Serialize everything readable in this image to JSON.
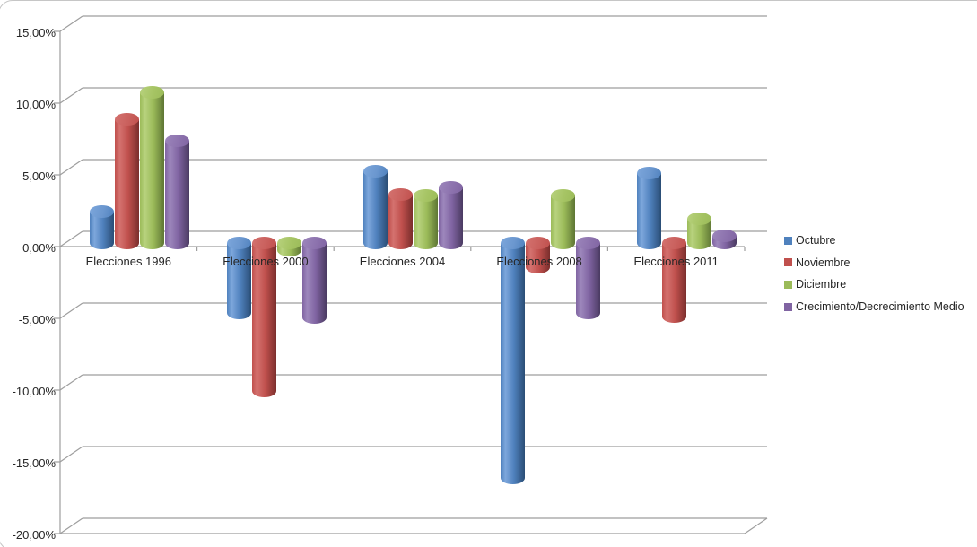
{
  "chart_data": {
    "type": "bar",
    "style": "3d-clustered-cylinder",
    "title": "",
    "categories": [
      "Elecciones 1996",
      "Elecciones 2000",
      "Elecciones 2004",
      "Elecciones 2008",
      "Elecciones 2011"
    ],
    "series": [
      {
        "name": "Octubre",
        "color": "#4F81BD",
        "values": [
          2.2,
          -4.9,
          5.0,
          -16.4,
          4.9
        ]
      },
      {
        "name": "Noviembre",
        "color": "#C0504D",
        "values": [
          8.6,
          -10.3,
          3.4,
          -1.7,
          -5.1
        ]
      },
      {
        "name": "Diciembre",
        "color": "#9BBB59",
        "values": [
          10.5,
          -0.5,
          3.3,
          3.3,
          1.7
        ]
      },
      {
        "name": "Crecimiento/Decrecimiento Medio",
        "color": "#8064A2",
        "values": [
          7.1,
          -5.2,
          3.9,
          -4.9,
          0.5
        ]
      }
    ],
    "y_axis": {
      "min": -20,
      "max": 15,
      "step": 5,
      "format": "percent-comma-decimal",
      "tick_labels": [
        "15,00%",
        "10,00%",
        "5,00%",
        "0,00%",
        "-5,00%",
        "-10,00%",
        "-15,00%",
        "-20,00%"
      ]
    },
    "legend": {
      "position": "right"
    },
    "grid": true,
    "units": "%"
  },
  "palette": {
    "background": "#FFFFFF",
    "gridline": "#9E9E9E",
    "axis_text": "#262626",
    "frame_border": "#C6C6C6",
    "series_shading": {
      "Octubre": {
        "light": "#7DA7DC",
        "dark": "#2A4D75",
        "cap": "#6B97CF"
      },
      "Noviembre": {
        "light": "#D4726F",
        "dark": "#7A2E2C",
        "cap": "#CA615E"
      },
      "Diciembre": {
        "light": "#B8D27E",
        "dark": "#5E7634",
        "cap": "#A6C464"
      },
      "Crecimiento/Decrecimiento Medio": {
        "light": "#9D87BC",
        "dark": "#4A3A61",
        "cap": "#8D73AE"
      }
    }
  }
}
